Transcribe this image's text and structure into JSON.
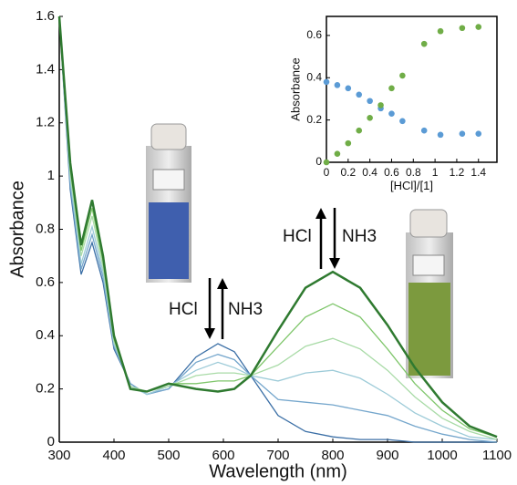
{
  "chart_data": [
    {
      "type": "line",
      "xlabel": "Wavelength (nm)",
      "ylabel": "Absorbance",
      "x": [
        300,
        320,
        340,
        360,
        380,
        400,
        430,
        460,
        500,
        550,
        590,
        620,
        650,
        700,
        750,
        800,
        850,
        900,
        950,
        1000,
        1050,
        1100
      ],
      "xlim": [
        300,
        1100
      ],
      "xticks": [
        300,
        400,
        500,
        600,
        700,
        800,
        900,
        1000,
        1100
      ],
      "ylim": [
        0,
        1.6
      ],
      "yticks": [
        0,
        0.2,
        0.4,
        0.6,
        0.8,
        1,
        1.2,
        1.4,
        1.6
      ],
      "annotations": [
        "HCl",
        "NH3",
        "HCl",
        "NH3"
      ],
      "series": [
        {
          "color": "#3b6fa6",
          "values": [
            1.6,
            0.95,
            0.63,
            0.75,
            0.6,
            0.35,
            0.22,
            0.18,
            0.2,
            0.32,
            0.37,
            0.34,
            0.25,
            0.1,
            0.04,
            0.02,
            0.01,
            0.01,
            0,
            0,
            0,
            0
          ]
        },
        {
          "color": "#74a6cc",
          "values": [
            1.6,
            0.97,
            0.65,
            0.78,
            0.62,
            0.36,
            0.22,
            0.18,
            0.2,
            0.3,
            0.33,
            0.31,
            0.25,
            0.16,
            0.15,
            0.14,
            0.12,
            0.1,
            0.06,
            0.03,
            0.01,
            0
          ]
        },
        {
          "color": "#9dcbd8",
          "values": [
            1.6,
            0.99,
            0.67,
            0.81,
            0.64,
            0.37,
            0.21,
            0.18,
            0.21,
            0.27,
            0.3,
            0.28,
            0.25,
            0.23,
            0.26,
            0.27,
            0.24,
            0.18,
            0.11,
            0.06,
            0.02,
            0.01
          ]
        },
        {
          "color": "#a9dba7",
          "values": [
            1.6,
            1.01,
            0.7,
            0.85,
            0.66,
            0.38,
            0.21,
            0.19,
            0.21,
            0.25,
            0.26,
            0.26,
            0.25,
            0.29,
            0.36,
            0.39,
            0.35,
            0.27,
            0.17,
            0.09,
            0.04,
            0.01
          ]
        },
        {
          "color": "#7fc66b",
          "values": [
            1.6,
            1.03,
            0.72,
            0.88,
            0.68,
            0.39,
            0.2,
            0.19,
            0.22,
            0.22,
            0.23,
            0.23,
            0.25,
            0.36,
            0.47,
            0.52,
            0.47,
            0.35,
            0.22,
            0.12,
            0.05,
            0.02
          ]
        },
        {
          "color": "#2f7a30",
          "values": [
            1.6,
            1.05,
            0.74,
            0.91,
            0.7,
            0.4,
            0.2,
            0.19,
            0.22,
            0.2,
            0.19,
            0.2,
            0.25,
            0.42,
            0.58,
            0.64,
            0.58,
            0.44,
            0.28,
            0.15,
            0.06,
            0.02
          ]
        }
      ]
    },
    {
      "type": "scatter",
      "xlabel": "[HCl]/[1]",
      "ylabel": "Absorbance",
      "x": [
        0,
        0.1,
        0.2,
        0.3,
        0.4,
        0.5,
        0.6,
        0.7,
        0.9,
        1.05,
        1.25,
        1.4
      ],
      "xlim": [
        0,
        1.57
      ],
      "xticks": [
        0,
        0.2,
        0.4,
        0.6,
        0.8,
        1,
        1.2,
        1.4
      ],
      "ylim": [
        0,
        0.69
      ],
      "yticks": [
        0,
        0.2,
        0.4,
        0.6
      ],
      "series": [
        {
          "color": "#5b9bd5",
          "values": [
            0.38,
            0.365,
            0.35,
            0.32,
            0.29,
            0.255,
            0.23,
            0.195,
            0.15,
            0.13,
            0.135,
            0.135
          ]
        },
        {
          "color": "#70ad47",
          "values": [
            0,
            0.04,
            0.09,
            0.15,
            0.21,
            0.27,
            0.35,
            0.41,
            0.56,
            0.62,
            0.635,
            0.64
          ]
        }
      ]
    }
  ]
}
